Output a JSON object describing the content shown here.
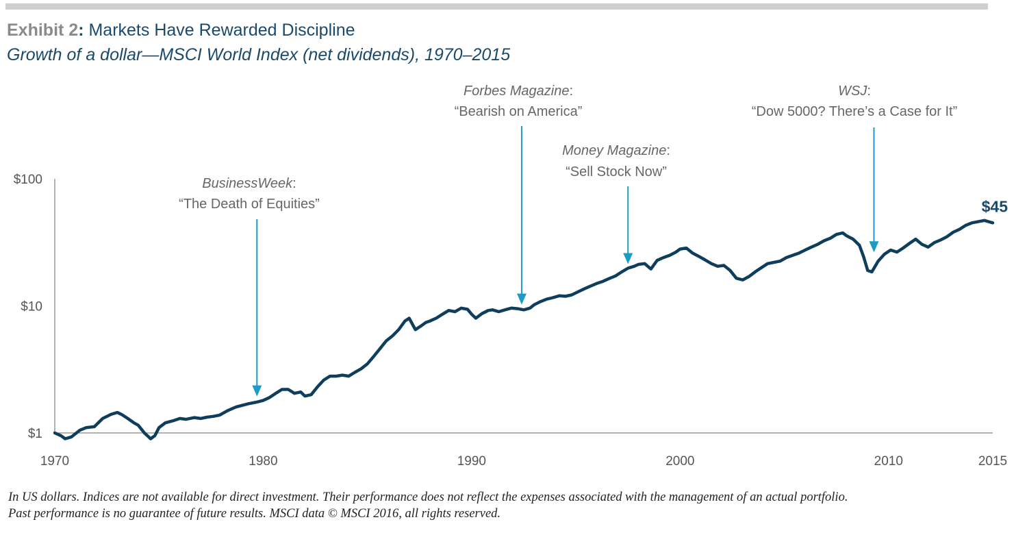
{
  "header": {
    "exhibit_label": "Exhibit 2",
    "title_text": "Markets Have Rewarded Discipline",
    "subtitle": "Growth of a dollar—MSCI World Index (net dividends), 1970–2015"
  },
  "footnote": {
    "line1": "In US dollars. Indices are not available for direct investment. Their performance does not reflect the expenses associated with the management of an actual portfolio.",
    "line2": "Past performance is no guarantee of future results. MSCI data © MSCI 2016, all rights reserved."
  },
  "colors": {
    "line": "#0f3d5c",
    "arrow": "#1a9cc4",
    "axis": "#666666",
    "title": "#1a4a6b",
    "exhibit": "#8a8a8a"
  },
  "chart_data": {
    "type": "line",
    "title": "Growth of a dollar—MSCI World Index (net dividends), 1970–2015",
    "y_scale": "log",
    "ylim": [
      1,
      100
    ],
    "xlim": [
      1970,
      2015
    ],
    "x_ticks": [
      {
        "value": 1970,
        "label": "1970"
      },
      {
        "value": 1980,
        "label": "1980"
      },
      {
        "value": 1990,
        "label": "1990"
      },
      {
        "value": 2000,
        "label": "2000"
      },
      {
        "value": 2010,
        "label": "2010"
      },
      {
        "value": 2015,
        "label": "2015"
      }
    ],
    "y_ticks": [
      {
        "value": 1,
        "label": "$1"
      },
      {
        "value": 10,
        "label": "$10"
      },
      {
        "value": 100,
        "label": "$100"
      }
    ],
    "grid": false,
    "end_label": "$45",
    "series": [
      {
        "x": [
          1970.0,
          1970.3,
          1970.5,
          1970.8,
          1971.2,
          1971.5,
          1971.9,
          1972.3,
          1972.7,
          1973.0,
          1973.2,
          1973.5,
          1973.8,
          1974.0,
          1974.3,
          1974.6,
          1974.8,
          1975.0,
          1975.3,
          1975.7,
          1976.0,
          1976.3,
          1976.7,
          1977.0,
          1977.3,
          1977.6,
          1977.9,
          1978.3,
          1978.7,
          1979.0,
          1979.3,
          1979.7,
          1980.0,
          1980.3,
          1980.6,
          1980.9,
          1981.2,
          1981.5,
          1981.8,
          1982.0,
          1982.3,
          1982.6,
          1982.9,
          1983.2,
          1983.5,
          1983.8,
          1984.1,
          1984.4,
          1984.7,
          1985.0,
          1985.3,
          1985.6,
          1985.9,
          1986.2,
          1986.5,
          1986.8,
          1987.0,
          1987.3,
          1987.6,
          1987.8,
          1988.0,
          1988.3,
          1988.6,
          1988.9,
          1989.2,
          1989.5,
          1989.8,
          1990.0,
          1990.2,
          1990.5,
          1990.8,
          1991.0,
          1991.3,
          1991.6,
          1991.9,
          1992.2,
          1992.5,
          1992.8,
          1993.0,
          1993.3,
          1993.6,
          1993.9,
          1994.2,
          1994.5,
          1994.8,
          1995.1,
          1995.4,
          1995.7,
          1996.0,
          1996.3,
          1996.6,
          1996.9,
          1997.2,
          1997.5,
          1997.8,
          1998.0,
          1998.3,
          1998.6,
          1998.9,
          1999.2,
          1999.5,
          1999.8,
          2000.0,
          2000.3,
          2000.6,
          2000.9,
          2001.2,
          2001.5,
          2001.8,
          2002.1,
          2002.4,
          2002.7,
          2003.0,
          2003.3,
          2003.6,
          2003.9,
          2004.2,
          2004.5,
          2004.8,
          2005.1,
          2005.4,
          2005.7,
          2006.0,
          2006.3,
          2006.6,
          2006.9,
          2007.2,
          2007.5,
          2007.8,
          2008.0,
          2008.3,
          2008.6,
          2008.8,
          2009.0,
          2009.2,
          2009.5,
          2009.8,
          2010.1,
          2010.4,
          2010.7,
          2011.0,
          2011.3,
          2011.6,
          2011.9,
          2012.2,
          2012.5,
          2012.8,
          2013.1,
          2013.4,
          2013.7,
          2014.0,
          2014.3,
          2014.6,
          2014.8,
          2015.0
        ],
        "y": [
          1.0,
          0.95,
          0.9,
          0.93,
          1.05,
          1.1,
          1.12,
          1.3,
          1.4,
          1.45,
          1.4,
          1.3,
          1.2,
          1.15,
          1.0,
          0.9,
          0.95,
          1.1,
          1.2,
          1.25,
          1.3,
          1.28,
          1.32,
          1.3,
          1.33,
          1.35,
          1.38,
          1.5,
          1.6,
          1.65,
          1.7,
          1.75,
          1.8,
          1.9,
          2.05,
          2.2,
          2.2,
          2.05,
          2.1,
          1.95,
          2.0,
          2.3,
          2.6,
          2.8,
          2.8,
          2.85,
          2.8,
          3.0,
          3.2,
          3.5,
          4.0,
          4.6,
          5.3,
          5.8,
          6.5,
          7.6,
          8.0,
          6.5,
          7.0,
          7.4,
          7.6,
          8.0,
          8.6,
          9.2,
          9.0,
          9.6,
          9.4,
          8.6,
          8.0,
          8.7,
          9.2,
          9.3,
          9.0,
          9.3,
          9.6,
          9.5,
          9.3,
          9.6,
          10.2,
          10.8,
          11.3,
          11.6,
          12.0,
          11.9,
          12.2,
          12.9,
          13.6,
          14.3,
          15.0,
          15.6,
          16.4,
          17.2,
          18.5,
          19.8,
          20.5,
          21.2,
          21.5,
          19.5,
          22.8,
          24.0,
          25.0,
          26.5,
          28.0,
          28.5,
          26.0,
          24.5,
          23.0,
          21.5,
          20.5,
          20.8,
          19.0,
          16.5,
          16.0,
          17.0,
          18.5,
          20.0,
          21.5,
          22.0,
          22.5,
          24.0,
          25.0,
          26.0,
          27.5,
          29.0,
          30.5,
          32.5,
          34.0,
          36.5,
          37.5,
          35.5,
          33.5,
          30.0,
          24.5,
          19.0,
          18.5,
          22.5,
          25.5,
          27.5,
          26.5,
          28.5,
          31.0,
          33.5,
          30.5,
          29.0,
          31.5,
          33.0,
          35.0,
          38.0,
          40.0,
          43.0,
          45.0,
          46.0,
          47.0,
          46.0,
          45.0
        ]
      }
    ],
    "annotations": [
      {
        "publication": "BusinessWeek",
        "headline": "“The Death of Equities”",
        "x": 1979.7,
        "y": 1.8
      },
      {
        "publication": "Forbes Magazine",
        "headline": "“Bearish on America”",
        "x": 1992.4,
        "y": 9.5
      },
      {
        "publication": "Money Magazine",
        "headline": "“Sell Stock Now”",
        "x": 1997.5,
        "y": 19.8
      },
      {
        "publication": "WSJ",
        "headline": "“Dow 5000? There’s a Case for It”",
        "x": 2009.3,
        "y": 24.5
      }
    ]
  }
}
